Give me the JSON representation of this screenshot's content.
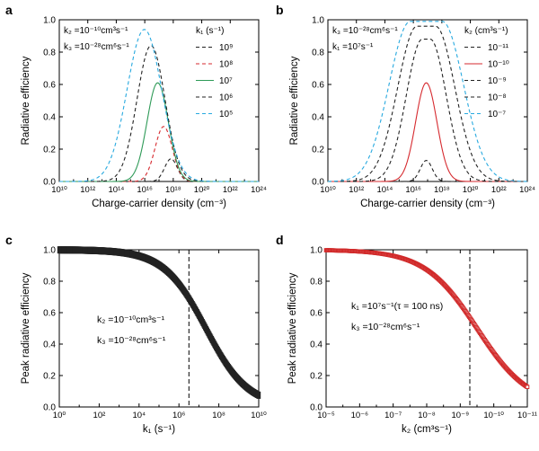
{
  "colors": {
    "axis": "#000000",
    "black": "#222222",
    "red": "#d62a2f",
    "green": "#2e9a57",
    "cyan": "#27a9df",
    "points_d": "#d12a2a"
  },
  "chart_data": [
    {
      "panel": "a",
      "type": "line",
      "xscale": "log",
      "xlim": [
        10000000000.0,
        1e+25
      ],
      "ylim": [
        0,
        1.0
      ],
      "xlabel": "Charge-carrier density (cm⁻³)",
      "ylabel": "Radiative efficiency",
      "xticks": [
        "10¹⁰",
        "10¹²",
        "10¹⁴",
        "10¹⁶",
        "10¹⁸",
        "10²⁰",
        "10²²",
        "10²⁴"
      ],
      "yticks": [
        "0.0",
        "0.2",
        "0.4",
        "0.6",
        "0.8",
        "1.0"
      ],
      "params": [
        "k₂ =10⁻¹⁰cm³s⁻¹",
        "k₃ =10⁻²⁸cm⁶s⁻¹"
      ],
      "legend_title": "k₁ (s⁻¹)",
      "legend_position": "top-right",
      "series": [
        {
          "name": "10⁹",
          "style": "dashed",
          "color": "black",
          "peak_x_log": 18.4,
          "peak_y": 0.14,
          "width": 0.48
        },
        {
          "name": "10⁸",
          "style": "dashed",
          "color": "red",
          "peak_x_log": 17.85,
          "peak_y": 0.34,
          "width": 0.65
        },
        {
          "name": "10⁷",
          "style": "solid",
          "color": "green",
          "peak_x_log": 17.4,
          "peak_y": 0.61,
          "width": 0.8
        },
        {
          "name": "10⁶",
          "style": "dashed",
          "color": "black",
          "peak_x_log": 16.9,
          "peak_y": 0.84,
          "width": 1.05
        },
        {
          "name": "10⁵",
          "style": "dashed",
          "color": "cyan",
          "peak_x_log": 16.4,
          "peak_y": 0.94,
          "width": 1.3
        }
      ]
    },
    {
      "panel": "b",
      "type": "line",
      "xscale": "log",
      "xlim": [
        10000000000.0,
        1e+25
      ],
      "ylim": [
        0,
        1.0
      ],
      "xlabel": "Charge-carrier density (cm⁻³)",
      "ylabel": "Radiative efficiency",
      "xticks": [
        "10¹⁰",
        "10¹²",
        "10¹⁴",
        "10¹⁶",
        "10¹⁸",
        "10²⁰",
        "10²²",
        "10²⁴"
      ],
      "yticks": [
        "0.0",
        "0.2",
        "0.4",
        "0.6",
        "0.8",
        "1.0"
      ],
      "params": [
        "k₃ =10⁻²⁸cm⁶s⁻¹",
        "k₁ =10⁷s⁻¹"
      ],
      "legend_title": "k₂ (cm³s⁻¹)",
      "legend_position": "top-right",
      "series": [
        {
          "name": "10⁻¹¹",
          "style": "dashed",
          "color": "black",
          "peak_x_log": 17.4,
          "peak_y": 0.13,
          "width": 0.45
        },
        {
          "name": "10⁻¹⁰",
          "style": "solid",
          "color": "red",
          "peak_x_log": 17.4,
          "peak_y": 0.61,
          "width": 0.8
        },
        {
          "name": "10⁻⁹",
          "style": "dashed",
          "color": "black",
          "peak_x_log": 17.4,
          "peak_y": 0.88,
          "width": 1.2,
          "flat": 0.3
        },
        {
          "name": "10⁻⁸",
          "style": "dashed",
          "color": "black",
          "peak_x_log": 17.4,
          "peak_y": 0.96,
          "width": 1.45,
          "flat": 0.7
        },
        {
          "name": "10⁻⁷",
          "style": "dashed",
          "color": "cyan",
          "peak_x_log": 17.4,
          "peak_y": 0.99,
          "width": 1.6,
          "flat": 1.2
        }
      ]
    },
    {
      "panel": "c",
      "type": "scatter",
      "xscale": "log",
      "xlim": [
        1,
        10000000000.0
      ],
      "ylim": [
        0,
        1.0
      ],
      "xlabel": "k₁ (s⁻¹)",
      "ylabel": "Peak radiative efficiency",
      "xticks": [
        "10⁰",
        "10²",
        "10⁴",
        "10⁶",
        "10⁸",
        "10¹⁰"
      ],
      "yticks": [
        "0.0",
        "0.2",
        "0.4",
        "0.6",
        "0.8",
        "1.0"
      ],
      "params": [
        "k₂ =10⁻¹⁰cm³s⁻¹",
        "k₃ =10⁻²⁸cm⁶s⁻¹"
      ],
      "vline_x_log": 6.5,
      "curve": {
        "midpoint_log": 7.35,
        "slope": 0.95,
        "max": 1.0
      },
      "series": [
        {
          "color": "black"
        }
      ]
    },
    {
      "panel": "d",
      "type": "scatter",
      "xscale": "log-reversed",
      "xlim": [
        1e-05,
        1e-12
      ],
      "ylim": [
        0,
        1.0
      ],
      "xlabel": "k₂ (cm³s⁻¹)",
      "ylabel": "Peak radiative efficiency",
      "xticks": [
        "10⁻⁵",
        "10⁻⁶",
        "10⁻⁷",
        "10⁻⁸",
        "10⁻⁹",
        "10⁻¹⁰",
        "10⁻¹¹"
      ],
      "yticks": [
        "0.0",
        "0.2",
        "0.4",
        "0.6",
        "0.8",
        "1.0"
      ],
      "params": [
        "k₁ =10⁷s⁻¹(τ = 100 ns)",
        "k₃ =10⁻²⁸cm⁶s⁻¹"
      ],
      "vline_x_log": -10,
      "curve": {
        "midpoint_log": -10.25,
        "slope": 1.1,
        "max": 1.0
      },
      "series": [
        {
          "color": "points_d"
        }
      ]
    }
  ]
}
